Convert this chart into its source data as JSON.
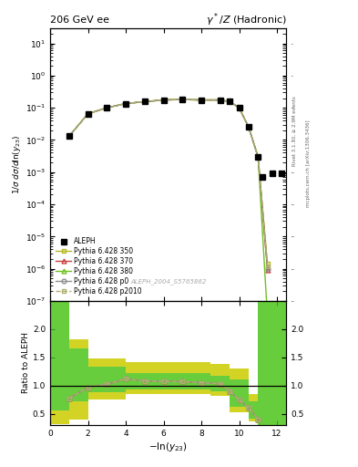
{
  "title_left": "206 GeV ee",
  "title_right": "$\\gamma^*/Z$ (Hadronic)",
  "xlabel": "$-\\ln(y_{23})$",
  "ylabel_main": "$1/\\sigma\\;d\\sigma/d\\ln(y_{23})$",
  "ylabel_ratio": "Ratio to ALEPH",
  "watermark": "ALEPH_2004_S5765862",
  "right_label_top": "Rivet 3.1.10, ≥ 2.9M events",
  "right_label_bot": "mcplots.cern.ch [arXiv:1306.3436]",
  "aleph_x": [
    1.0,
    2.0,
    3.0,
    4.0,
    5.0,
    6.0,
    7.0,
    8.0,
    9.0,
    9.5,
    10.0,
    10.5,
    11.0,
    11.25,
    11.75,
    12.25
  ],
  "aleph_y": [
    0.013,
    0.065,
    0.1,
    0.135,
    0.155,
    0.175,
    0.18,
    0.175,
    0.175,
    0.155,
    0.1,
    0.025,
    0.003,
    0.0007,
    0.0009,
    0.0009
  ],
  "mc_x": [
    1.0,
    2.0,
    3.0,
    4.0,
    5.0,
    6.0,
    7.0,
    8.0,
    9.0,
    9.5,
    10.0,
    10.5,
    11.0,
    11.5
  ],
  "mc_y_350": [
    0.013,
    0.065,
    0.1,
    0.135,
    0.155,
    0.175,
    0.18,
    0.175,
    0.175,
    0.155,
    0.1,
    0.025,
    0.003,
    1.4e-06
  ],
  "mc_y_370": [
    0.013,
    0.065,
    0.1,
    0.135,
    0.155,
    0.175,
    0.18,
    0.175,
    0.175,
    0.155,
    0.1,
    0.025,
    0.003,
    9e-07
  ],
  "mc_y_380": [
    0.013,
    0.065,
    0.1,
    0.135,
    0.155,
    0.175,
    0.18,
    0.175,
    0.175,
    0.155,
    0.1,
    0.025,
    0.003,
    3e-08
  ],
  "mc_y_p0": [
    0.013,
    0.065,
    0.1,
    0.135,
    0.155,
    0.175,
    0.18,
    0.175,
    0.175,
    0.155,
    0.1,
    0.025,
    0.003,
    1e-06
  ],
  "mc_y_p2010": [
    0.013,
    0.065,
    0.1,
    0.135,
    0.155,
    0.175,
    0.18,
    0.175,
    0.175,
    0.155,
    0.1,
    0.025,
    0.003,
    1.2e-06
  ],
  "ratio_x": [
    1.0,
    2.0,
    3.0,
    4.0,
    5.0,
    6.0,
    7.0,
    8.0,
    9.0,
    9.5,
    10.0,
    10.5,
    11.0
  ],
  "ratio_350": [
    0.77,
    0.97,
    1.02,
    1.12,
    1.08,
    1.07,
    1.07,
    1.05,
    1.03,
    0.9,
    0.75,
    0.6,
    0.4
  ],
  "ratio_370": [
    0.77,
    0.97,
    1.02,
    1.12,
    1.08,
    1.07,
    1.07,
    1.05,
    1.03,
    0.9,
    0.75,
    0.6,
    0.4
  ],
  "ratio_380": [
    0.77,
    0.97,
    1.02,
    1.12,
    1.08,
    1.07,
    1.07,
    1.05,
    1.03,
    0.9,
    0.75,
    0.6,
    0.4
  ],
  "ratio_p0": [
    0.77,
    0.97,
    1.02,
    1.12,
    1.08,
    1.07,
    1.07,
    1.05,
    1.03,
    0.9,
    0.75,
    0.6,
    0.4
  ],
  "ratio_p2010": [
    0.77,
    0.97,
    1.02,
    1.12,
    1.08,
    1.07,
    1.07,
    1.05,
    1.03,
    0.9,
    0.75,
    0.6,
    0.4
  ],
  "band_edges": [
    0.0,
    1.0,
    2.0,
    4.0,
    6.0,
    8.5,
    9.5,
    10.5,
    11.0,
    12.5
  ],
  "band_green_lo": [
    0.55,
    0.72,
    0.88,
    0.93,
    0.93,
    0.9,
    0.62,
    0.42,
    0.0,
    0.0
  ],
  "band_green_hi": [
    2.5,
    1.65,
    1.33,
    1.22,
    1.22,
    1.18,
    1.1,
    0.72,
    2.5,
    2.5
  ],
  "band_yellow_lo": [
    0.32,
    0.4,
    0.75,
    0.85,
    0.85,
    0.82,
    0.52,
    0.36,
    0.0,
    0.0
  ],
  "band_yellow_hi": [
    2.5,
    1.82,
    1.48,
    1.42,
    1.42,
    1.38,
    1.3,
    0.85,
    2.5,
    2.5
  ],
  "color_350": "#b5b820",
  "color_370": "#c84040",
  "color_380": "#70c020",
  "color_p0": "#909090",
  "color_p2010": "#b0b070",
  "color_green": "#44cc44",
  "color_yellow": "#cccc00",
  "ylim_main": [
    1e-07,
    30
  ],
  "ylim_ratio": [
    0.3,
    2.5
  ],
  "xlim": [
    0.0,
    12.5
  ]
}
